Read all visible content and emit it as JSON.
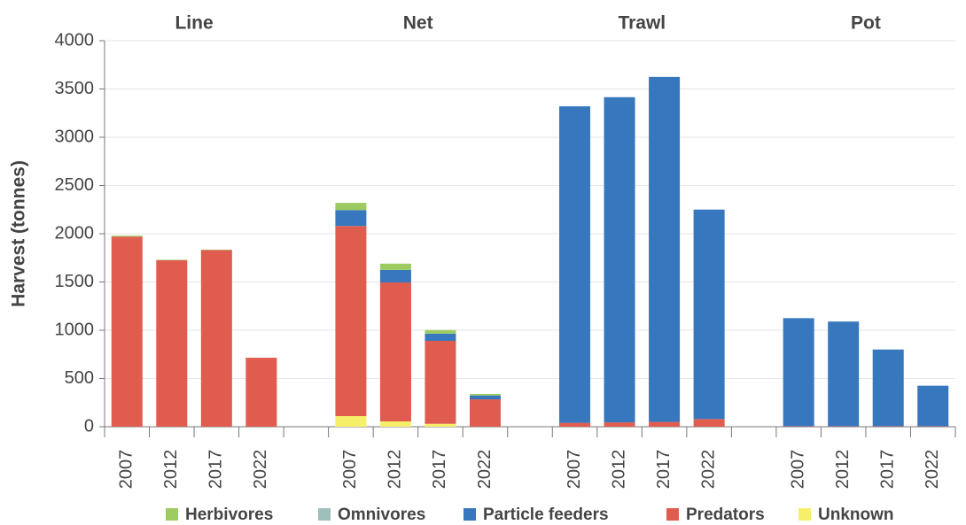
{
  "chart_data": {
    "type": "stacked-bar",
    "groups": [
      "Line",
      "Net",
      "Trawl",
      "Pot"
    ],
    "categories": [
      "2007",
      "2012",
      "2017",
      "2022",
      "2007",
      "2012",
      "2017",
      "2022",
      "2007",
      "2012",
      "2017",
      "2022",
      "2007",
      "2012",
      "2017",
      "2022"
    ],
    "y_label": "Harvest (tonnes)",
    "ylim": [
      0,
      4000
    ],
    "yticks": [
      0,
      500,
      1000,
      1500,
      2000,
      2500,
      3000,
      3500,
      4000
    ],
    "grid": true,
    "series": [
      {
        "name": "Unknown",
        "color": "#f6ef6a",
        "values": [
          0,
          0,
          0,
          0,
          110,
          55,
          30,
          0,
          0,
          0,
          0,
          0,
          0,
          0,
          0,
          0
        ]
      },
      {
        "name": "Predators",
        "color": "#e05c4e",
        "values": [
          1970,
          1725,
          1830,
          715,
          1970,
          1440,
          860,
          284,
          40,
          45,
          50,
          80,
          5,
          5,
          5,
          5
        ]
      },
      {
        "name": "Particle feeders",
        "color": "#3677bd",
        "values": [
          0,
          0,
          0,
          0,
          165,
          130,
          75,
          40,
          3280,
          3370,
          3575,
          2170,
          1120,
          1085,
          795,
          420
        ]
      },
      {
        "name": "Omnivores",
        "color": "#9fbfbc",
        "values": [
          0,
          0,
          0,
          0,
          0,
          0,
          0,
          0,
          0,
          0,
          0,
          0,
          0,
          0,
          0,
          0
        ]
      },
      {
        "name": "Herbivores",
        "color": "#9dcb62",
        "values": [
          10,
          5,
          5,
          0,
          75,
          65,
          37,
          16,
          0,
          0,
          0,
          0,
          0,
          0,
          0,
          0
        ]
      }
    ]
  }
}
